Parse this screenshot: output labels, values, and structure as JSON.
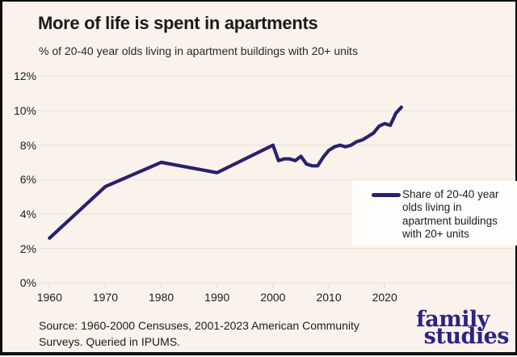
{
  "header": {
    "title": "More of life is spent in apartments",
    "subtitle": "% of 20-40 year olds living in apartment buildings with 20+ units"
  },
  "chart_data": {
    "type": "line",
    "title": "More of life is spent in apartments",
    "subtitle": "% of 20-40 year olds living in apartment buildings with 20+ units",
    "x": [
      1960,
      1970,
      1980,
      1990,
      2000,
      2001,
      2002,
      2003,
      2004,
      2005,
      2006,
      2007,
      2008,
      2009,
      2010,
      2011,
      2012,
      2013,
      2014,
      2015,
      2016,
      2017,
      2018,
      2019,
      2020,
      2021,
      2022,
      2023
    ],
    "values": [
      2.6,
      5.6,
      7.0,
      6.4,
      8.0,
      7.1,
      7.2,
      7.2,
      7.1,
      7.35,
      6.9,
      6.8,
      6.8,
      7.3,
      7.7,
      7.9,
      8.0,
      7.9,
      8.0,
      8.2,
      8.3,
      8.5,
      8.7,
      9.1,
      9.25,
      9.15,
      9.85,
      10.2
    ],
    "series_name": "Share of 20-40 year olds living in apartment buildings with 20+ units",
    "xtick_values": [
      1960,
      1970,
      1980,
      1990,
      2000,
      2010,
      2020
    ],
    "xtick_labels": [
      "1960",
      "1970",
      "1980",
      "1990",
      "2000",
      "2010",
      "2020"
    ],
    "ytick_values": [
      0,
      2,
      4,
      6,
      8,
      10,
      12
    ],
    "ytick_labels": [
      "0%",
      "2%",
      "4%",
      "6%",
      "8%",
      "10%",
      "12%"
    ],
    "ylim": [
      0,
      12
    ],
    "xlim": [
      1960,
      2023
    ],
    "grid": true,
    "legend_position": "middle-right",
    "line_color": "#28216e"
  },
  "legend": {
    "lines": [
      "Share of 20-40 year",
      "olds living in",
      "apartment buildings",
      "with 20+ units"
    ]
  },
  "footer": {
    "source_line1": "Source: 1960-2000 Censuses, 2001-2023 American Community",
    "source_line2": "Surveys. Queried in IPUMS."
  },
  "logo": {
    "line1": "family",
    "line2": "studies"
  },
  "colors": {
    "background": "#fcf2ec",
    "line": "#28216e",
    "grid": "#e8e1da",
    "tick": "#d8d1cb",
    "text": "#1d1d1d",
    "logo": "#2b2482",
    "legend_background": "#fffdfc",
    "border": "#0c0c0c"
  }
}
